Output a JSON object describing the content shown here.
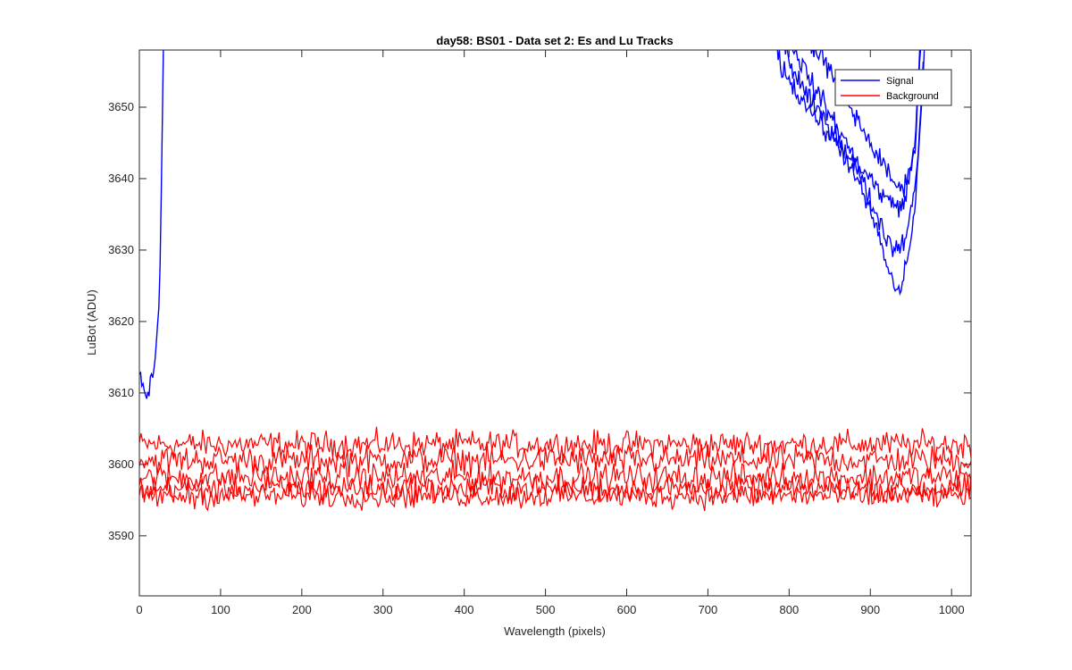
{
  "chart_data": {
    "type": "line",
    "title": "day58: BS01 - Data set 2: Es and Lu Tracks",
    "xlabel": "Wavelength (pixels)",
    "ylabel": "LuBot (ADU)",
    "xlim": [
      0,
      1024
    ],
    "ylim": [
      3581.6,
      3658
    ],
    "xticks": [
      0,
      100,
      200,
      300,
      400,
      500,
      600,
      700,
      800,
      900,
      1000
    ],
    "yticks": [
      3590,
      3600,
      3610,
      3620,
      3630,
      3640,
      3650
    ],
    "grid": false,
    "legend_position": "top-right",
    "colors": {
      "signal": "#0000ff",
      "background": "#ff0000",
      "axes": "#262626"
    },
    "series": [
      {
        "name": "Signal",
        "color": "#0000ff",
        "tracks": [
          {
            "left_x": [
              0,
              5,
              10,
              15,
              20,
              22,
              24,
              26,
              28,
              30
            ],
            "left_y": [
              3613,
              3610,
              3609,
              3612,
              3615,
              3618,
              3622,
              3630,
              3645,
              3662
            ],
            "right_x": [
              770,
              790,
              810,
              830,
              850,
              870,
              890,
              905,
              915,
              925,
              935,
              945,
              955,
              962,
              968
            ],
            "right_y": [
              3662,
              3656,
              3652,
              3649,
              3646,
              3643,
              3638,
              3634,
              3630,
              3626,
              3624,
              3628,
              3636,
              3648,
              3660
            ]
          },
          {
            "right_x": [
              785,
              805,
              825,
              845,
              865,
              885,
              900,
              915,
              930,
              945,
              958,
              966
            ],
            "right_y": [
              3662,
              3655,
              3651,
              3648,
              3645,
              3641,
              3637,
              3633,
              3630,
              3632,
              3642,
              3658
            ]
          },
          {
            "right_x": [
              800,
              820,
              840,
              860,
              880,
              900,
              920,
              940,
              955,
              963
            ],
            "right_y": [
              3660,
              3655,
              3651,
              3647,
              3643,
              3640,
              3637,
              3636,
              3645,
              3660
            ]
          },
          {
            "right_x": [
              820,
              840,
              860,
              880,
              900,
              920,
              940,
              955,
              962
            ],
            "right_y": [
              3660,
              3657,
              3653,
              3649,
              3645,
              3641,
              3638,
              3644,
              3660
            ]
          }
        ]
      },
      {
        "name": "Background",
        "color": "#ff0000",
        "tracks": [
          {
            "mean": 3602.8,
            "noise": 1.6
          },
          {
            "mean": 3600.6,
            "noise": 1.7
          },
          {
            "mean": 3598.2,
            "noise": 1.7
          },
          {
            "mean": 3596.6,
            "noise": 1.6
          },
          {
            "mean": 3595.6,
            "noise": 1.5
          }
        ]
      }
    ]
  }
}
